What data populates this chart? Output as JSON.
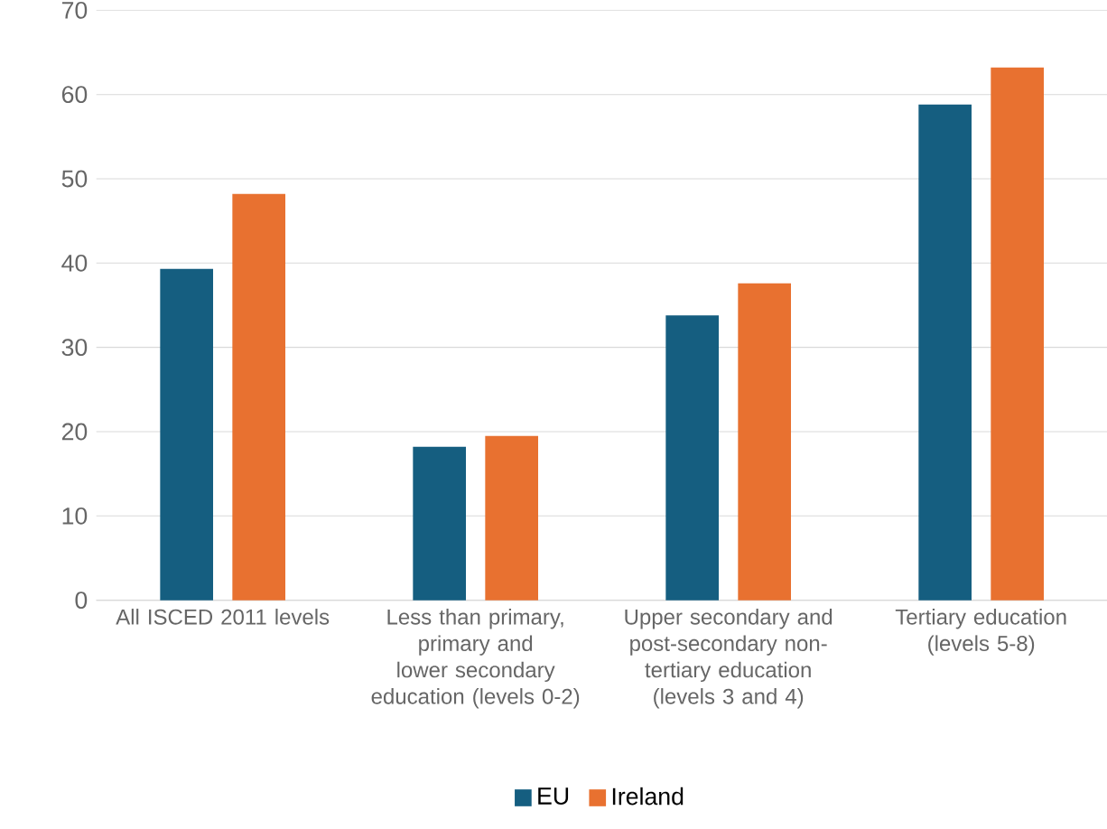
{
  "chart_data": {
    "type": "bar",
    "categories": [
      "All ISCED 2011 levels",
      "Less than primary, primary and lower secondary education (levels 0-2)",
      "Upper secondary and post-secondary non-tertiary education (levels 3 and 4)",
      "Tertiary education (levels 5-8)"
    ],
    "series": [
      {
        "name": "EU",
        "color": "#155e80",
        "values": [
          39.3,
          18.2,
          33.8,
          58.8
        ]
      },
      {
        "name": "Ireland",
        "color": "#e87130",
        "values": [
          48.2,
          19.5,
          37.6,
          63.2
        ]
      }
    ],
    "ylim": [
      0,
      70
    ],
    "yticks": [
      0,
      10,
      20,
      30,
      40,
      50,
      60,
      70
    ],
    "grid": "y",
    "legend": "bottom"
  }
}
